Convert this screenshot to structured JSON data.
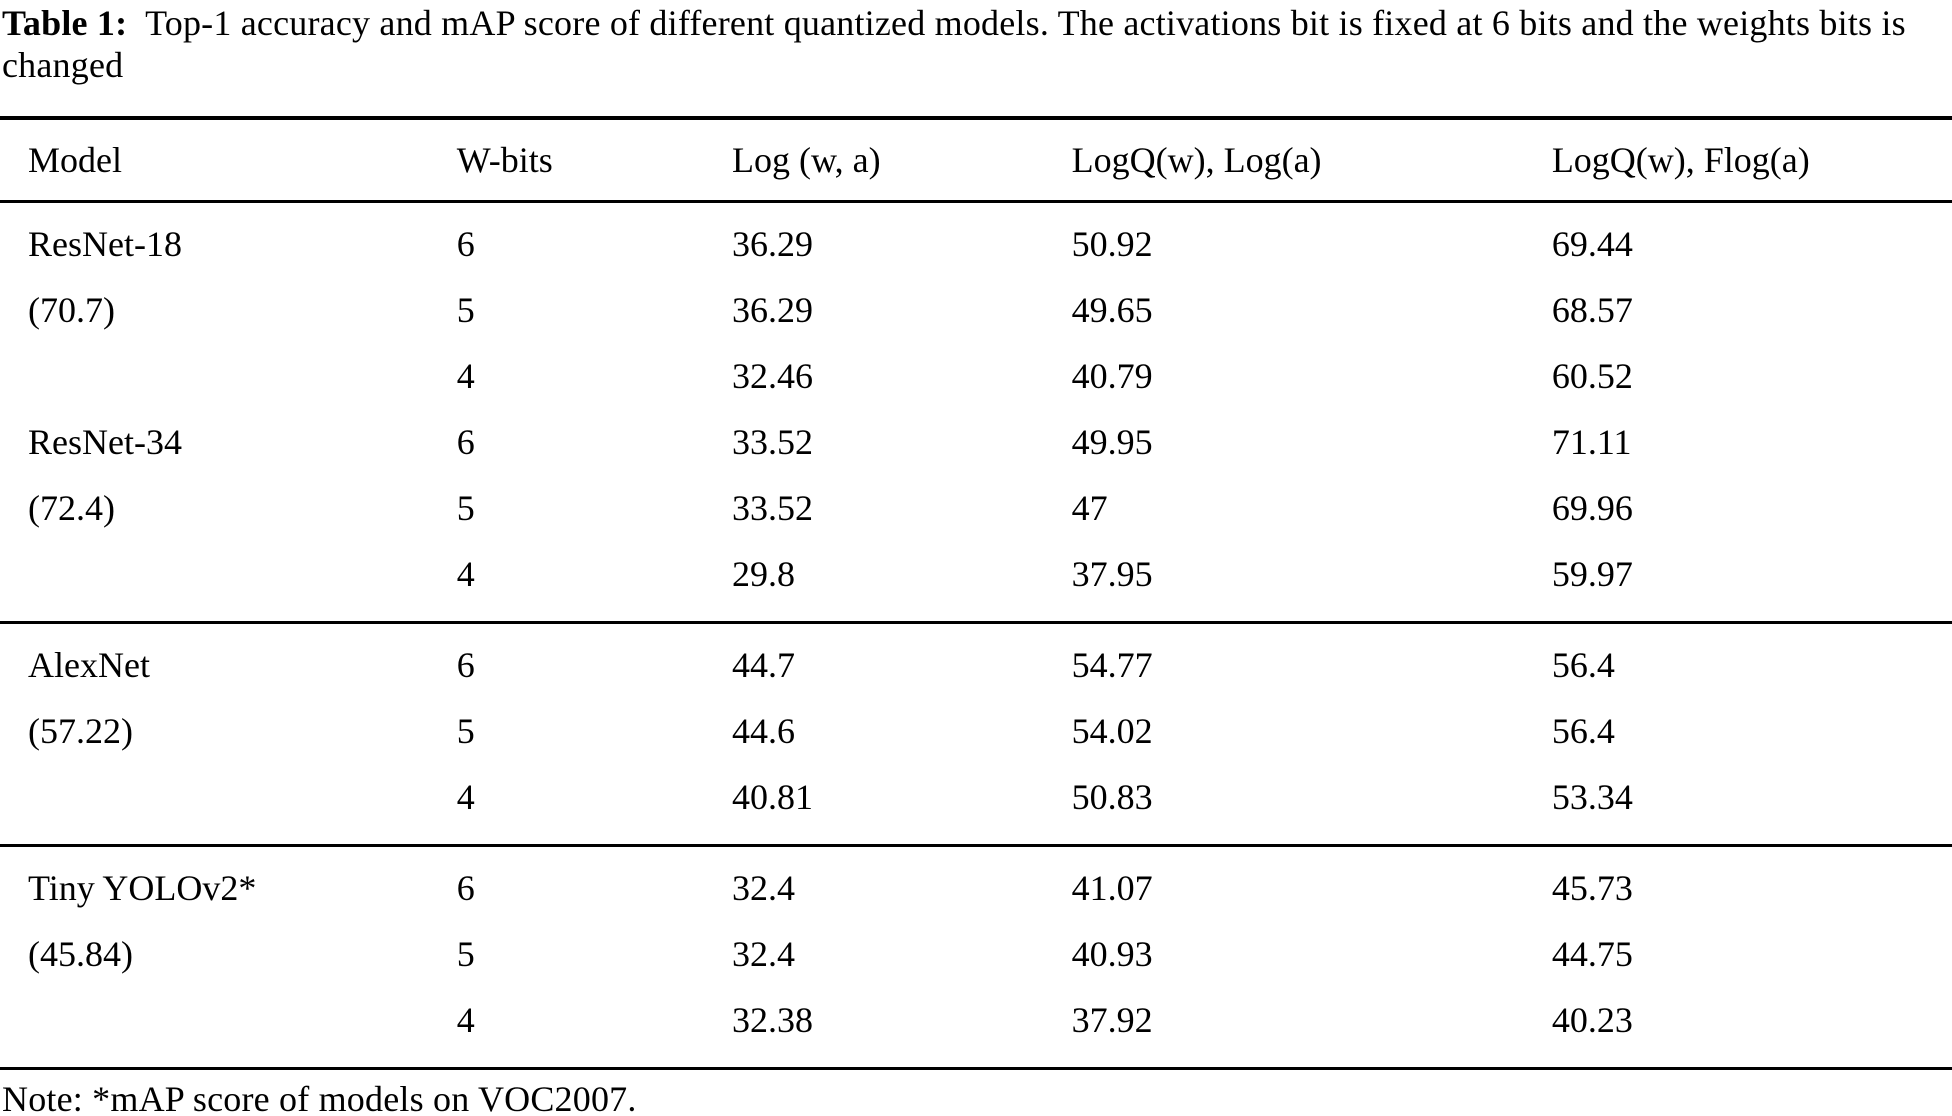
{
  "caption": {
    "label": "Table 1:",
    "text": "Top-1 accuracy and mAP score of different quantized models. The activations bit is fixed at 6 bits and the weights bits is changed"
  },
  "table": {
    "columns": [
      "Model",
      "W-bits",
      "Log (w, a)",
      "LogQ(w), Log(a)",
      "LogQ(w), Flog(a)"
    ],
    "groups": [
      {
        "models": [
          {
            "name": "ResNet-18",
            "baseline": "(70.7)",
            "rows": [
              [
                "6",
                "36.29",
                "50.92",
                "69.44"
              ],
              [
                "5",
                "36.29",
                "49.65",
                "68.57"
              ],
              [
                "4",
                "32.46",
                "40.79",
                "60.52"
              ]
            ]
          },
          {
            "name": "ResNet-34",
            "baseline": "(72.4)",
            "rows": [
              [
                "6",
                "33.52",
                "49.95",
                "71.11"
              ],
              [
                "5",
                "33.52",
                "47",
                "69.96"
              ],
              [
                "4",
                "29.8",
                "37.95",
                "59.97"
              ]
            ]
          }
        ]
      },
      {
        "models": [
          {
            "name": "AlexNet",
            "baseline": "(57.22)",
            "rows": [
              [
                "6",
                "44.7",
                "54.77",
                "56.4"
              ],
              [
                "5",
                "44.6",
                "54.02",
                "56.4"
              ],
              [
                "4",
                "40.81",
                "50.83",
                "53.34"
              ]
            ]
          }
        ]
      },
      {
        "models": [
          {
            "name": "Tiny YOLOv2*",
            "baseline": "(45.84)",
            "rows": [
              [
                "6",
                "32.4",
                "41.07",
                "45.73"
              ],
              [
                "5",
                "32.4",
                "40.93",
                "44.75"
              ],
              [
                "4",
                "32.38",
                "37.92",
                "40.23"
              ]
            ]
          }
        ]
      }
    ],
    "note": "Note: *mAP score of models on VOC2007."
  }
}
